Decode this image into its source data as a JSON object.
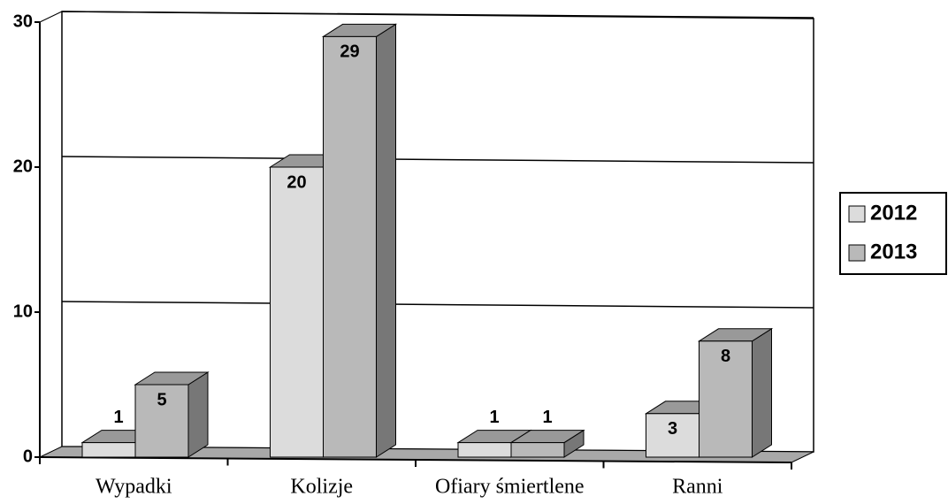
{
  "chart_data": {
    "type": "bar3d",
    "categories": [
      "Wypadki",
      "Kolizje",
      "Ofiary śmiertlene",
      "Ranni"
    ],
    "series": [
      {
        "name": "2012",
        "color": "#dcdcdc",
        "values": [
          1,
          20,
          1,
          3
        ]
      },
      {
        "name": "2013",
        "color": "#b9b9b9",
        "values": [
          5,
          29,
          1,
          8
        ]
      }
    ],
    "ylim": [
      0,
      30
    ],
    "yticks": [
      0,
      10,
      20,
      30
    ],
    "grid": true,
    "legend": "right"
  }
}
